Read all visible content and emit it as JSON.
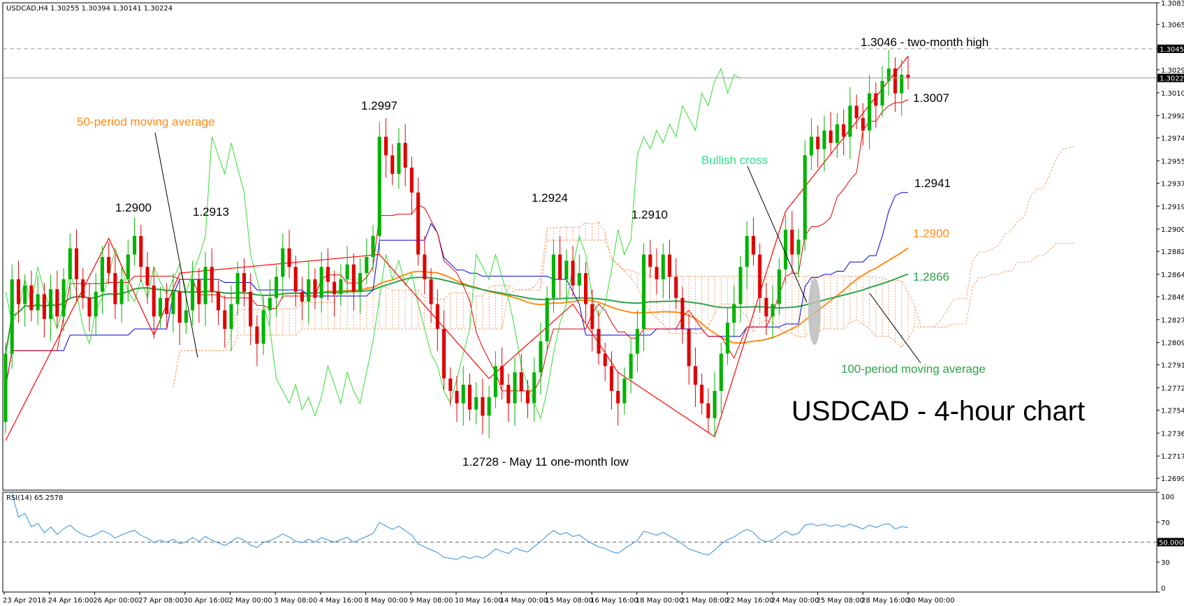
{
  "header": {
    "symbol": "USDCAD,H4",
    "ohlc": "1.30255 1.30394 1.30141 1.30224"
  },
  "rsi_header": "RSI(14) 65.2578",
  "title": "USDCAD - 4-hour chart",
  "colors": {
    "candle_up": "#00b300",
    "candle_down": "#e00000",
    "ma50": "#ff8c1a",
    "ma100": "#2ea34a",
    "kijun": "#0000dd",
    "tenkan": "#e00000",
    "chikou": "#33dd33",
    "cloud": "#f4a070",
    "zigzag": "#ff0000",
    "rsi": "#2a8fe0",
    "annotation_orange": "#ff8c1a",
    "annotation_green": "#2ea34a",
    "annotation_bright_green": "#33dd88"
  },
  "chart_data": {
    "type": "candlestick",
    "y_range": [
      1.269,
      1.3083
    ],
    "price_ticks": [
      "1.30830",
      "1.30655",
      "1.30459",
      "1.30290",
      "1.30224",
      "1.30105",
      "1.29920",
      "1.29740",
      "1.29555",
      "1.29375",
      "1.29190",
      "1.29005",
      "1.28825",
      "1.28640",
      "1.28460",
      "1.28275",
      "1.28090",
      "1.27910",
      "1.27725",
      "1.27545",
      "1.27360",
      "1.27175",
      "1.26995"
    ],
    "highlighted_prices": [
      {
        "label": "1.30459",
        "value": 1.30459,
        "style": "dashed"
      },
      {
        "label": "1.30224",
        "value": 1.30224,
        "style": "solid"
      }
    ],
    "time_labels": [
      "23 Apr 2018",
      "24 Apr 16:00",
      "26 Apr 00:00",
      "27 Apr 08:00",
      "30 Apr 16:00",
      "2 May 00:00",
      "3 May 08:00",
      "4 May 16:00",
      "8 May 00:00",
      "9 May 08:00",
      "10 May 16:00",
      "14 May 00:00",
      "15 May 08:00",
      "16 May 16:00",
      "18 May 00:00",
      "21 May 08:00",
      "22 May 16:00",
      "24 May 00:00",
      "25 May 08:00",
      "28 May 16:00",
      "30 May 00:00"
    ],
    "candles": [
      [
        1.2745,
        1.28
      ],
      [
        1.28,
        1.286
      ],
      [
        1.286,
        1.284
      ],
      [
        1.284,
        1.2855
      ],
      [
        1.2855,
        1.2835
      ],
      [
        1.2835,
        1.2848
      ],
      [
        1.2848,
        1.2828
      ],
      [
        1.2828,
        1.2852
      ],
      [
        1.2852,
        1.283
      ],
      [
        1.283,
        1.286
      ],
      [
        1.286,
        1.2885
      ],
      [
        1.2885,
        1.286
      ],
      [
        1.286,
        1.2845
      ],
      [
        1.2845,
        1.283
      ],
      [
        1.283,
        1.285
      ],
      [
        1.285,
        1.2878
      ],
      [
        1.2878,
        1.2865
      ],
      [
        1.2865,
        1.284
      ],
      [
        1.284,
        1.286
      ],
      [
        1.286,
        1.288
      ],
      [
        1.288,
        1.2895
      ],
      [
        1.2895,
        1.287
      ],
      [
        1.287,
        1.2855
      ],
      [
        1.2855,
        1.283
      ],
      [
        1.283,
        1.2845
      ],
      [
        1.2845,
        1.2832
      ],
      [
        1.2832,
        1.285
      ],
      [
        1.285,
        1.2825
      ],
      [
        1.2825,
        1.2835
      ],
      [
        1.2835,
        1.286
      ],
      [
        1.286,
        1.284
      ],
      [
        1.284,
        1.287
      ],
      [
        1.287,
        1.285
      ],
      [
        1.285,
        1.2835
      ],
      [
        1.2835,
        1.282
      ],
      [
        1.282,
        1.284
      ],
      [
        1.284,
        1.2865
      ],
      [
        1.2865,
        1.285
      ],
      [
        1.285,
        1.2822
      ],
      [
        1.2822,
        1.2808
      ],
      [
        1.2808,
        1.2835
      ],
      [
        1.2835,
        1.2845
      ],
      [
        1.2845,
        1.2862
      ],
      [
        1.2862,
        1.2885
      ],
      [
        1.2885,
        1.287
      ],
      [
        1.287,
        1.285
      ],
      [
        1.285,
        1.2842
      ],
      [
        1.2842,
        1.286
      ],
      [
        1.286,
        1.2845
      ],
      [
        1.2845,
        1.287
      ],
      [
        1.287,
        1.2858
      ],
      [
        1.2858,
        1.2848
      ],
      [
        1.2848,
        1.286
      ],
      [
        1.286,
        1.2872
      ],
      [
        1.2872,
        1.285
      ],
      [
        1.285,
        1.2865
      ],
      [
        1.2865,
        1.2878
      ],
      [
        1.2878,
        1.2895
      ],
      [
        1.2895,
        1.2975
      ],
      [
        1.2975,
        1.296
      ],
      [
        1.296,
        1.2945
      ],
      [
        1.2945,
        1.297
      ],
      [
        1.297,
        1.295
      ],
      [
        1.295,
        1.293
      ],
      [
        1.293,
        1.288
      ],
      [
        1.288,
        1.286
      ],
      [
        1.286,
        1.284
      ],
      [
        1.284,
        1.282
      ],
      [
        1.282,
        1.278
      ],
      [
        1.278,
        1.277
      ],
      [
        1.277,
        1.276
      ],
      [
        1.276,
        1.2775
      ],
      [
        1.2775,
        1.2755
      ],
      [
        1.2755,
        1.2765
      ],
      [
        1.2765,
        1.275
      ],
      [
        1.275,
        1.2765
      ],
      [
        1.2765,
        1.279
      ],
      [
        1.279,
        1.2775
      ],
      [
        1.2775,
        1.276
      ],
      [
        1.276,
        1.2785
      ],
      [
        1.2785,
        1.277
      ],
      [
        1.277,
        1.276
      ],
      [
        1.276,
        1.2785
      ],
      [
        1.2785,
        1.281
      ],
      [
        1.281,
        1.2845
      ],
      [
        1.2845,
        1.288
      ],
      [
        1.288,
        1.286
      ],
      [
        1.286,
        1.2875
      ],
      [
        1.2875,
        1.2855
      ],
      [
        1.2855,
        1.2865
      ],
      [
        1.2865,
        1.284
      ],
      [
        1.284,
        1.282
      ],
      [
        1.282,
        1.28
      ],
      [
        1.28,
        1.279
      ],
      [
        1.279,
        1.277
      ],
      [
        1.277,
        1.276
      ],
      [
        1.276,
        1.278
      ],
      [
        1.278,
        1.28
      ],
      [
        1.28,
        1.282
      ],
      [
        1.282,
        1.288
      ],
      [
        1.288,
        1.287
      ],
      [
        1.287,
        1.286
      ],
      [
        1.286,
        1.288
      ],
      [
        1.288,
        1.2862
      ],
      [
        1.2862,
        1.2845
      ],
      [
        1.2845,
        1.282
      ],
      [
        1.282,
        1.279
      ],
      [
        1.279,
        1.2775
      ],
      [
        1.2775,
        1.276
      ],
      [
        1.276,
        1.2748
      ],
      [
        1.2748,
        1.277
      ],
      [
        1.277,
        1.28
      ],
      [
        1.28,
        1.2825
      ],
      [
        1.2825,
        1.284
      ],
      [
        1.284,
        1.287
      ],
      [
        1.287,
        1.2895
      ],
      [
        1.2895,
        1.288
      ],
      [
        1.288,
        1.2845
      ],
      [
        1.2845,
        1.283
      ],
      [
        1.283,
        1.284
      ],
      [
        1.284,
        1.2868
      ],
      [
        1.2868,
        1.29
      ],
      [
        1.29,
        1.288
      ],
      [
        1.288,
        1.2892
      ],
      [
        1.2892,
        1.296
      ],
      [
        1.296,
        1.2975
      ],
      [
        1.2975,
        1.2965
      ],
      [
        1.2965,
        1.298
      ],
      [
        1.298,
        1.297
      ],
      [
        1.297,
        1.2985
      ],
      [
        1.2985,
        1.2975
      ],
      [
        1.2975,
        1.3
      ],
      [
        1.3,
        1.299
      ],
      [
        1.299,
        1.298
      ],
      [
        1.298,
        1.301
      ],
      [
        1.301,
        1.3
      ],
      [
        1.3,
        1.302
      ],
      [
        1.302,
        1.303
      ],
      [
        1.303,
        1.301
      ],
      [
        1.301,
        1.3025
      ],
      [
        1.3025,
        1.3022
      ]
    ],
    "ma50": {
      "name": "50-period moving average",
      "current": "1.2900"
    },
    "ma100": {
      "name": "100-period moving average",
      "current": "1.2866"
    },
    "kijun_current": "1.2941",
    "rsi": {
      "name": "RSI(14)",
      "value": 65.2578,
      "levels": [
        "100",
        "70",
        "50.0000",
        "30",
        "0"
      ],
      "range": [
        0,
        100
      ]
    },
    "annotations": [
      {
        "text": "1.3046 - two-month high",
        "color": "#000000"
      },
      {
        "text": "1.3007",
        "color": "#000000"
      },
      {
        "text": "1.2997",
        "color": "#000000"
      },
      {
        "text": "1.2924",
        "color": "#000000"
      },
      {
        "text": "1.2913",
        "color": "#000000"
      },
      {
        "text": "1.2910",
        "color": "#000000"
      },
      {
        "text": "1.2900",
        "color": "#000000"
      },
      {
        "text": "1.2941",
        "color": "#000000"
      },
      {
        "text": "1.2900",
        "color": "#ff8c1a"
      },
      {
        "text": "1.2866",
        "color": "#2ea34a"
      },
      {
        "text": "1.2728 - May 11 one-month low",
        "color": "#000000"
      },
      {
        "text": "50-period moving average",
        "color": "#ff8c1a"
      },
      {
        "text": "100-period moving average",
        "color": "#2ea34a"
      },
      {
        "text": "Bullish cross",
        "color": "#33dd88"
      }
    ]
  }
}
